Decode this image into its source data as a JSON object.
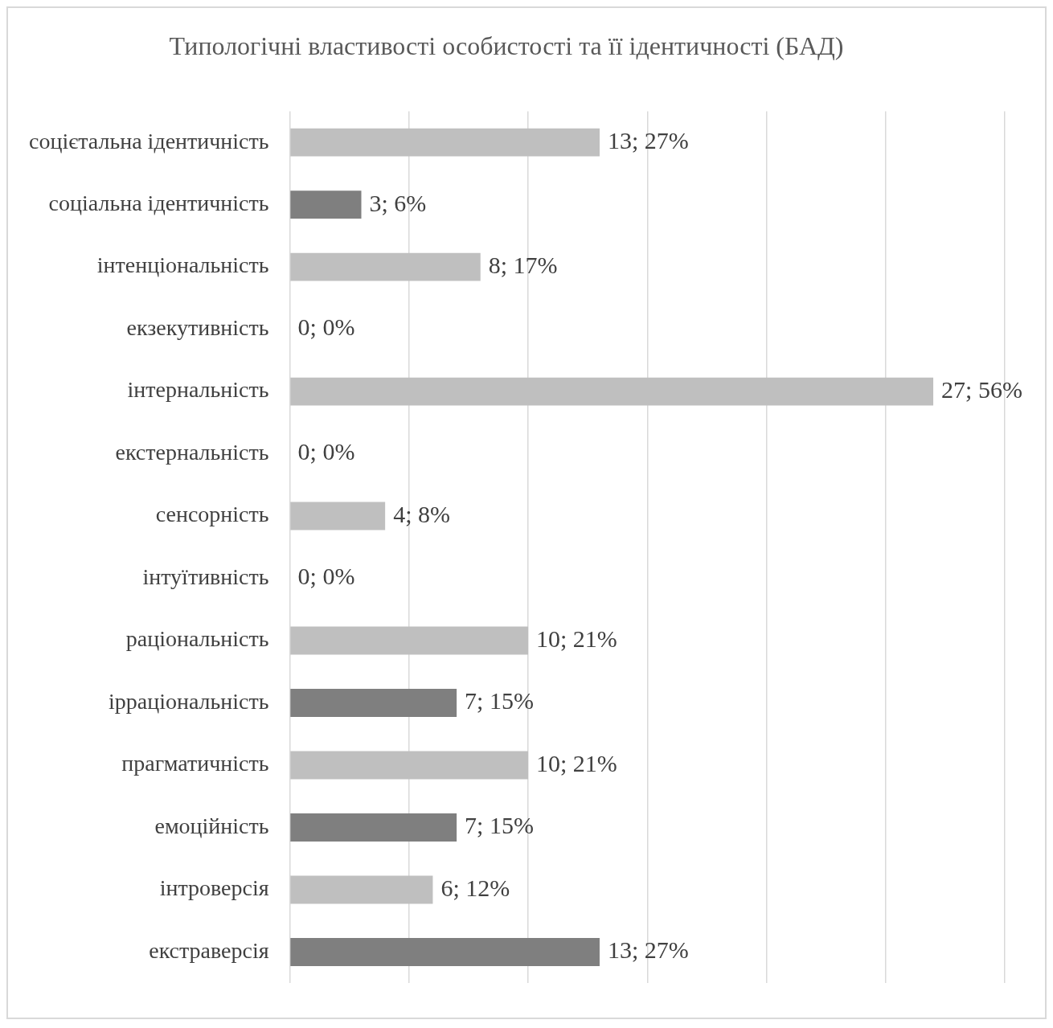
{
  "chart_data": {
    "type": "bar",
    "orientation": "horizontal",
    "title": "Типологічні властивості особистості та її ідентичності (БАД)",
    "categories": [
      "соцієтальна ідентичність",
      "соціальна ідентичність",
      "інтенціональність",
      "екзекутивність",
      "інтернальність",
      "екстернальність",
      "сенсорність",
      "інтуїтивність",
      "раціональність",
      "ірраціональність",
      "прагматичність",
      "емоційність",
      "інтроверсія",
      "екстраверсія"
    ],
    "values": [
      13,
      3,
      8,
      0,
      27,
      0,
      4,
      0,
      10,
      7,
      10,
      7,
      6,
      13
    ],
    "colors": [
      "#bfbfbf",
      "#7f7f7f",
      "#bfbfbf",
      "#bfbfbf",
      "#bfbfbf",
      "#bfbfbf",
      "#bfbfbf",
      "#bfbfbf",
      "#bfbfbf",
      "#7f7f7f",
      "#bfbfbf",
      "#7f7f7f",
      "#bfbfbf",
      "#7f7f7f"
    ],
    "value_labels": [
      "13; 27%",
      "3; 6%",
      "8; 17%",
      "0; 0%",
      "27; 56%",
      "0; 0%",
      "4; 8%",
      "0; 0%",
      "10; 21%",
      "7; 15%",
      "10; 21%",
      "7; 15%",
      "6; 12%",
      "13; 27%"
    ],
    "xlim": [
      0,
      30
    ],
    "xticks": [
      {
        "value": 0,
        "label": null
      },
      {
        "value": 5,
        "label": null
      },
      {
        "value": 10,
        "label": null
      },
      {
        "value": 15,
        "label": null
      },
      {
        "value": 20,
        "label": null
      },
      {
        "value": 25,
        "label": null
      },
      {
        "value": 30,
        "label": null
      }
    ],
    "tick_labels": "y",
    "grid": "x",
    "legend": false
  }
}
